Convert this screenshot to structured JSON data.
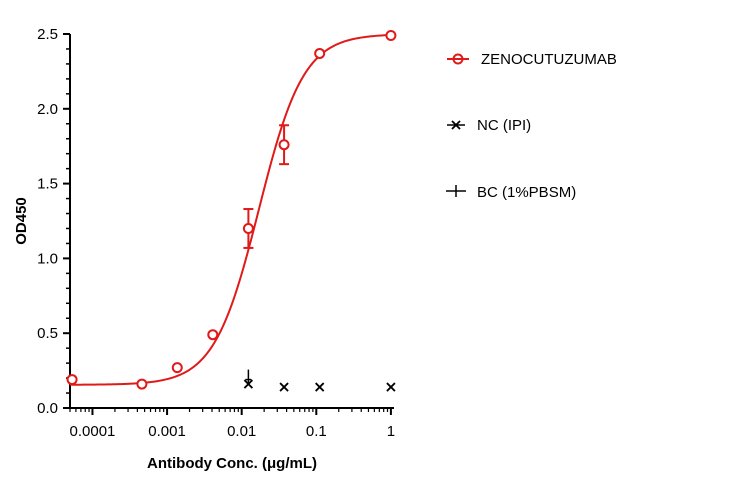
{
  "chart_data": {
    "type": "scatter",
    "xlabel": "Antibody Conc. (μg/mL)",
    "ylabel": "OD450",
    "x_scale": "log",
    "xlim": [
      5e-05,
      1.1
    ],
    "ylim": [
      0,
      2.5
    ],
    "x_ticks": [
      {
        "value": 0.0001,
        "label": "0.0001"
      },
      {
        "value": 0.001,
        "label": "0.001"
      },
      {
        "value": 0.01,
        "label": "0.01"
      },
      {
        "value": 0.1,
        "label": "0.1"
      },
      {
        "value": 1,
        "label": "1"
      }
    ],
    "y_ticks": [
      {
        "value": 0,
        "label": "0.0"
      },
      {
        "value": 0.5,
        "label": "0.5"
      },
      {
        "value": 1.0,
        "label": "1.0"
      },
      {
        "value": 1.5,
        "label": "1.5"
      },
      {
        "value": 2.0,
        "label": "2.0"
      },
      {
        "value": 2.5,
        "label": "2.5"
      }
    ],
    "grid": false,
    "legend_position": "right",
    "series": [
      {
        "name": "ZENOCUTUZUMAB",
        "color": "#e01919",
        "marker": "circle",
        "x": [
          5.33e-05,
          0.00046,
          0.00137,
          0.0041,
          0.0123,
          0.037,
          0.111,
          1.0
        ],
        "y": [
          0.19,
          0.16,
          0.27,
          0.49,
          1.2,
          1.76,
          2.37,
          2.49
        ],
        "error": [
          0,
          0,
          0,
          0,
          0.13,
          0.13,
          0,
          0
        ],
        "fit_curve": {
          "bottom": 0.155,
          "top": 2.5,
          "ec50": 0.017,
          "hill": 1.45
        }
      },
      {
        "name": "NC (IPI)",
        "color": "#000000",
        "marker": "x",
        "x": [
          0.0123,
          0.037,
          0.111,
          1.0
        ],
        "y": [
          0.16,
          0.14,
          0.14,
          0.14
        ]
      },
      {
        "name": "BC (1%PBSM)",
        "color": "#000000",
        "marker": "plus",
        "x": [
          0.0123
        ],
        "y": [
          0.21
        ]
      }
    ]
  }
}
